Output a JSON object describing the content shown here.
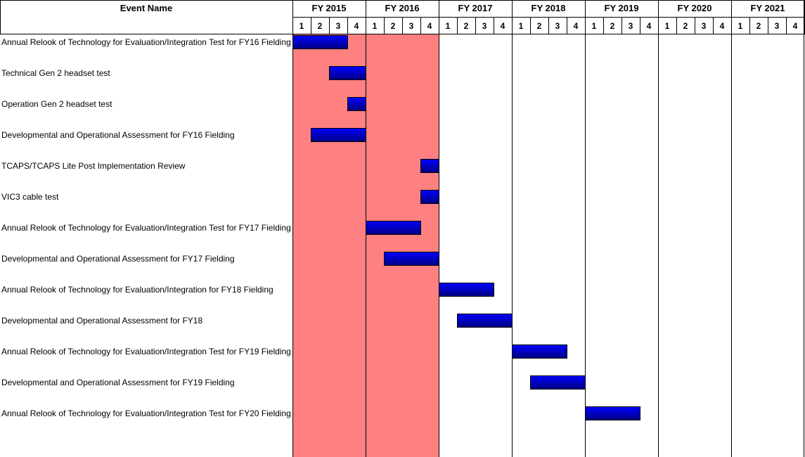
{
  "chart_data": {
    "type": "gantt",
    "header": {
      "event_column": "Event Name"
    },
    "fiscal_years": [
      "FY 2015",
      "FY 2016",
      "FY 2017",
      "FY 2018",
      "FY 2019",
      "FY 2020",
      "FY 2021"
    ],
    "quarters": [
      "1",
      "2",
      "3",
      "4"
    ],
    "highlighted_years": [
      "FY 2015",
      "FY 2016"
    ],
    "colors": {
      "highlight": "#ff8080",
      "bar_top": "#0000ff",
      "bar_bottom": "#000080",
      "bar_border": "#000000",
      "grid": "#000000",
      "background": "#ffffff"
    },
    "tasks": [
      {
        "name": "Annual Relook of Technology for Evaluation/Integration Test for FY16 Fielding",
        "start": "FY2015 Q1",
        "end": "FY2015 Q3"
      },
      {
        "name": "Technical Gen 2 headset test",
        "start": "FY2015 Q3",
        "end": "FY2015 Q4"
      },
      {
        "name": "Operation Gen 2 headset test",
        "start": "FY2015 Q4",
        "end": "FY2015 Q4"
      },
      {
        "name": "Developmental and Operational Assessment for FY16 Fielding",
        "start": "FY2015 Q2",
        "end": "FY2015 Q4"
      },
      {
        "name": "TCAPS/TCAPS Lite Post Implementation Review",
        "start": "FY2016 Q4",
        "end": "FY2016 Q4"
      },
      {
        "name": "VIC3 cable test",
        "start": "FY2016 Q4",
        "end": "FY2016 Q4"
      },
      {
        "name": "Annual Relook of Technology for Evaluation/Integration Test for FY17 Fielding",
        "start": "FY2016 Q1",
        "end": "FY2016 Q3"
      },
      {
        "name": "Developmental and Operational Assessment for FY17 Fielding",
        "start": "FY2016 Q2",
        "end": "FY2016 Q4"
      },
      {
        "name": "Annual Relook of Technology for Evaluation/Integration for FY18 Fielding",
        "start": "FY2017 Q1",
        "end": "FY2017 Q3"
      },
      {
        "name": "Developmental and Operational Assessment for FY18",
        "start": "FY2017 Q2",
        "end": "FY2017 Q4"
      },
      {
        "name": "Annual Relook of Technology for Evaluation/Integration Test for FY19 Fielding",
        "start": "FY2018 Q1",
        "end": "FY2018 Q3"
      },
      {
        "name": "Developmental and Operational Assessment for FY19 Fielding",
        "start": "FY2018 Q2",
        "end": "FY2018 Q4"
      },
      {
        "name": "Annual Relook of Technology for Evaluation/Integration Test for FY20 Fielding",
        "start": "FY2019 Q1",
        "end": "FY2019 Q3"
      }
    ]
  }
}
